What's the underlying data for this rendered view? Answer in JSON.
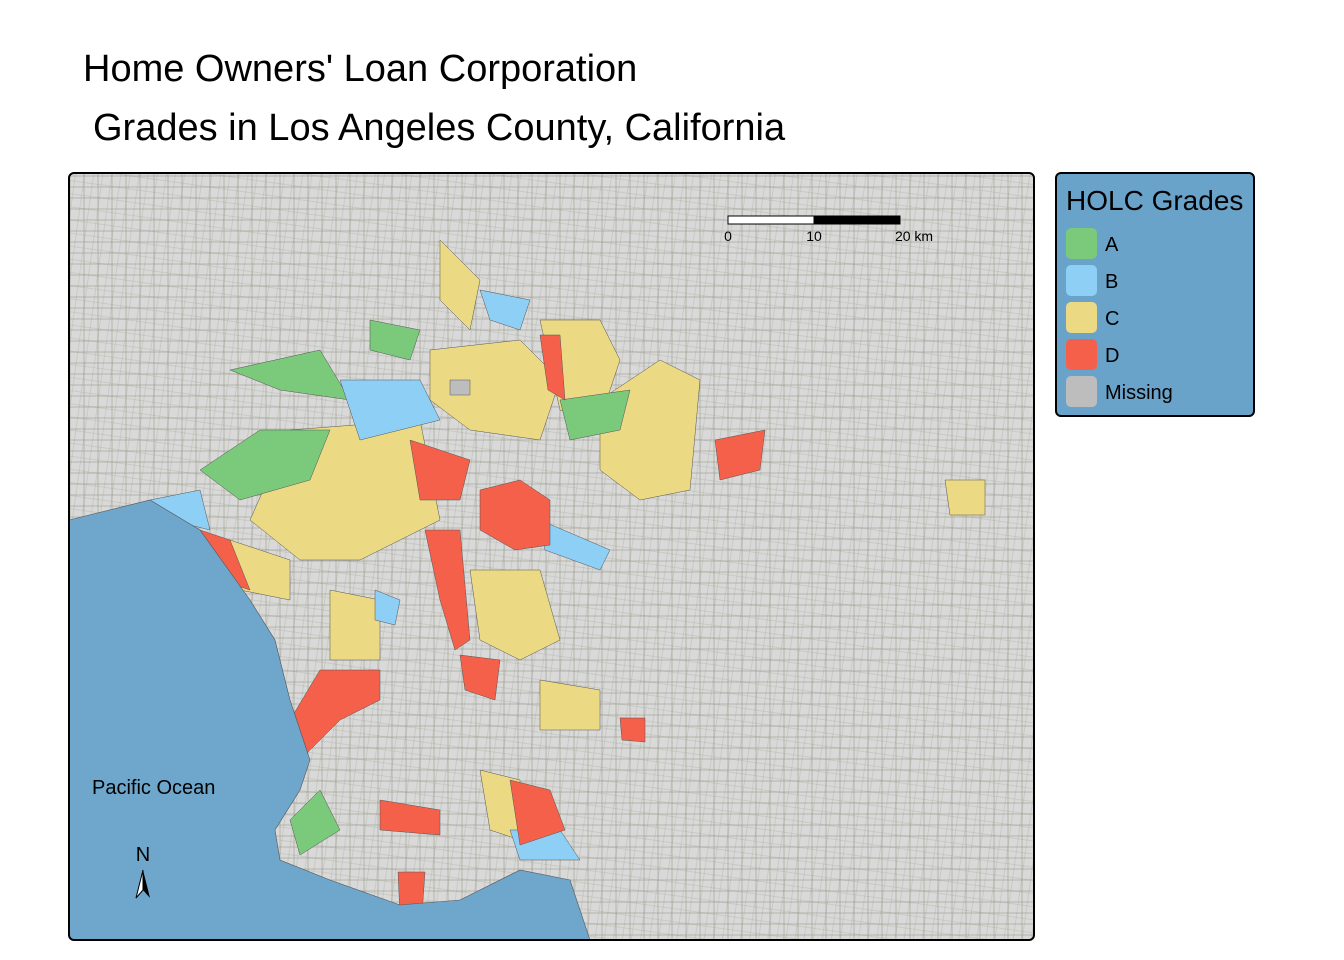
{
  "title": {
    "line1": "Home Owners' Loan Corporation",
    "line2": "Grades in Los Angeles County, California"
  },
  "map": {
    "ocean_label": "Pacific Ocean",
    "north_label": "N",
    "scale_bar": {
      "labels": [
        "0",
        "10",
        "20 km"
      ]
    }
  },
  "legend": {
    "title": "HOLC Grades",
    "items": [
      {
        "label": "A",
        "color": "#7bc97b"
      },
      {
        "label": "B",
        "color": "#8ecff5"
      },
      {
        "label": "C",
        "color": "#ecd983"
      },
      {
        "label": "D",
        "color": "#f5604a"
      },
      {
        "label": "Missing",
        "color": "#bdbdbd"
      }
    ]
  }
}
